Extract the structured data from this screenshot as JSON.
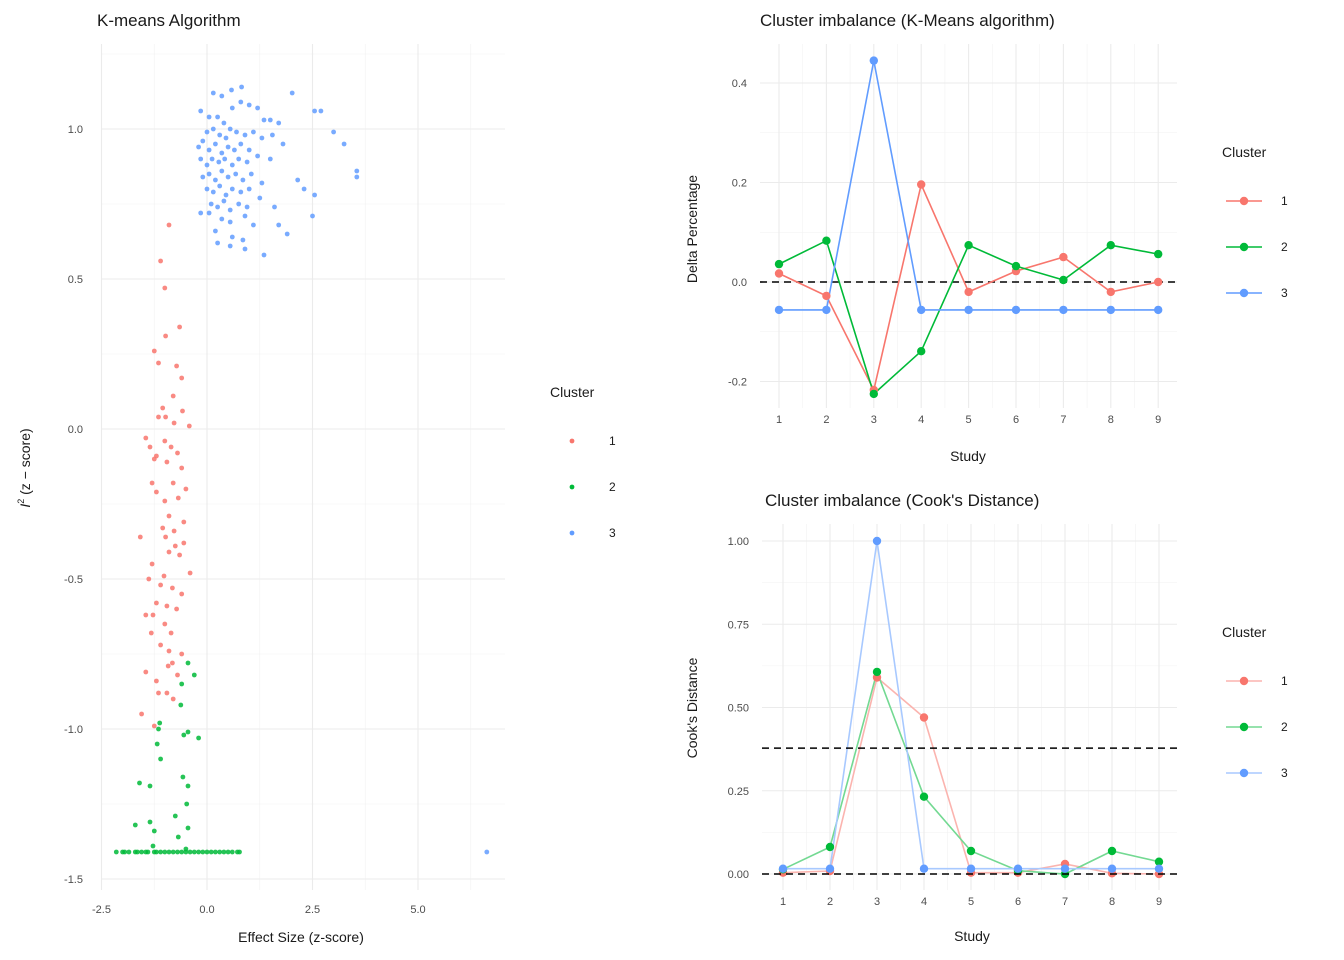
{
  "chart_data": [
    {
      "type": "scatter",
      "title": "K-means Algorithm",
      "xlabel": "Effect Size (z-score)",
      "ylabel_base": "I",
      "ylabel_sup": "2",
      "ylabel_rest": " (z − score)",
      "xlim": [
        -2.5,
        7.0
      ],
      "ylim": [
        -1.55,
        1.28
      ],
      "xticks": [
        -2.5,
        0.0,
        2.5,
        5.0
      ],
      "xtick_labels": [
        "-2.5",
        "0.0",
        "2.5",
        "5.0"
      ],
      "yticks": [
        -1.5,
        -1.0,
        -0.5,
        0.0,
        0.5,
        1.0
      ],
      "ytick_labels": [
        "-1.5",
        "-1.0",
        "-0.5",
        "0.0",
        "0.5",
        "1.0"
      ],
      "grid": true,
      "legend": {
        "title": "Cluster",
        "position": "right",
        "entries": [
          "1",
          "2",
          "3"
        ]
      },
      "colors": {
        "1": "#F8766D",
        "2": "#00BA38",
        "3": "#619CFF"
      },
      "series": [
        {
          "name": "1",
          "points": [
            [
              -0.9,
              0.68
            ],
            [
              -1.1,
              0.56
            ],
            [
              -1.0,
              0.47
            ],
            [
              -0.65,
              0.34
            ],
            [
              -1.25,
              0.26
            ],
            [
              -0.72,
              0.21
            ],
            [
              -0.98,
              0.31
            ],
            [
              -0.6,
              0.17
            ],
            [
              -1.15,
              0.22
            ],
            [
              -0.8,
              0.11
            ],
            [
              -0.58,
              0.06
            ],
            [
              -0.98,
              0.04
            ],
            [
              -1.05,
              0.07
            ],
            [
              -0.42,
              0.01
            ],
            [
              -1.15,
              0.04
            ],
            [
              -0.78,
              0.02
            ],
            [
              -1.45,
              -0.03
            ],
            [
              -1.35,
              -0.06
            ],
            [
              -1.0,
              -0.04
            ],
            [
              -0.85,
              -0.06
            ],
            [
              -0.7,
              -0.08
            ],
            [
              -1.2,
              -0.09
            ],
            [
              -0.95,
              -0.11
            ],
            [
              -0.6,
              -0.13
            ],
            [
              -0.8,
              -0.18
            ],
            [
              -1.2,
              -0.21
            ],
            [
              -1.0,
              -0.24
            ],
            [
              -0.68,
              -0.23
            ],
            [
              -1.3,
              -0.18
            ],
            [
              -0.9,
              -0.29
            ],
            [
              -0.55,
              -0.31
            ],
            [
              -1.05,
              -0.33
            ],
            [
              -0.78,
              -0.34
            ],
            [
              -0.98,
              -0.36
            ],
            [
              -1.58,
              -0.36
            ],
            [
              -0.75,
              -0.39
            ],
            [
              -0.9,
              -0.41
            ],
            [
              -0.65,
              -0.42
            ],
            [
              -1.3,
              -0.45
            ],
            [
              -1.02,
              -0.49
            ],
            [
              -1.1,
              -0.52
            ],
            [
              -0.4,
              -0.48
            ],
            [
              -0.82,
              -0.53
            ],
            [
              -0.6,
              -0.55
            ],
            [
              -1.2,
              -0.58
            ],
            [
              -0.95,
              -0.59
            ],
            [
              -0.72,
              -0.6
            ],
            [
              -1.28,
              -0.62
            ],
            [
              -1.0,
              -0.65
            ],
            [
              -0.85,
              -0.68
            ],
            [
              -1.32,
              -0.68
            ],
            [
              -1.1,
              -0.72
            ],
            [
              -0.9,
              -0.74
            ],
            [
              -0.6,
              -0.75
            ],
            [
              -0.92,
              -0.79
            ],
            [
              -0.82,
              -0.78
            ],
            [
              -0.7,
              -0.82
            ],
            [
              -1.45,
              -0.81
            ],
            [
              -1.2,
              -0.84
            ],
            [
              -0.95,
              -0.88
            ],
            [
              -1.15,
              -0.88
            ],
            [
              -0.8,
              -0.9
            ],
            [
              -1.55,
              -0.95
            ],
            [
              -1.25,
              -0.99
            ],
            [
              -1.45,
              -0.62
            ],
            [
              -1.38,
              -0.5
            ],
            [
              -0.55,
              -0.38
            ],
            [
              -1.25,
              -0.1
            ],
            [
              -0.5,
              -0.2
            ]
          ]
        },
        {
          "name": "2",
          "points": [
            [
              -0.45,
              -0.78
            ],
            [
              -0.3,
              -0.82
            ],
            [
              -0.6,
              -0.85
            ],
            [
              -0.62,
              -0.92
            ],
            [
              -1.12,
              -0.98
            ],
            [
              -1.15,
              -1.0
            ],
            [
              -0.55,
              -1.02
            ],
            [
              -0.45,
              -1.01
            ],
            [
              -0.2,
              -1.03
            ],
            [
              -1.18,
              -1.05
            ],
            [
              -1.1,
              -1.1
            ],
            [
              -0.57,
              -1.16
            ],
            [
              -1.6,
              -1.18
            ],
            [
              -1.35,
              -1.19
            ],
            [
              -0.45,
              -1.19
            ],
            [
              -0.48,
              -1.25
            ],
            [
              -1.35,
              -1.31
            ],
            [
              -0.75,
              -1.29
            ],
            [
              -1.7,
              -1.32
            ],
            [
              -1.25,
              -1.34
            ],
            [
              -0.45,
              -1.33
            ],
            [
              -0.68,
              -1.36
            ],
            [
              -1.28,
              -1.39
            ],
            [
              -0.5,
              -1.4
            ],
            [
              -2.15,
              -1.41
            ],
            [
              -2.0,
              -1.41
            ],
            [
              -1.95,
              -1.41
            ],
            [
              -1.85,
              -1.41
            ],
            [
              -1.7,
              -1.41
            ],
            [
              -1.65,
              -1.41
            ],
            [
              -1.55,
              -1.41
            ],
            [
              -1.45,
              -1.41
            ],
            [
              -1.4,
              -1.41
            ],
            [
              -1.25,
              -1.41
            ],
            [
              -1.2,
              -1.41
            ],
            [
              -1.1,
              -1.41
            ],
            [
              -1.0,
              -1.41
            ],
            [
              -0.9,
              -1.41
            ],
            [
              -0.8,
              -1.41
            ],
            [
              -0.7,
              -1.41
            ],
            [
              -0.6,
              -1.41
            ],
            [
              -0.5,
              -1.41
            ],
            [
              -0.4,
              -1.41
            ],
            [
              -0.3,
              -1.41
            ],
            [
              -0.2,
              -1.41
            ],
            [
              -0.1,
              -1.41
            ],
            [
              0.0,
              -1.41
            ],
            [
              0.1,
              -1.41
            ],
            [
              0.2,
              -1.41
            ],
            [
              0.3,
              -1.41
            ],
            [
              0.4,
              -1.41
            ],
            [
              0.5,
              -1.41
            ],
            [
              0.6,
              -1.41
            ],
            [
              0.72,
              -1.41
            ],
            [
              0.77,
              -1.41
            ]
          ]
        },
        {
          "name": "3",
          "points": [
            [
              6.63,
              -1.41
            ],
            [
              0.82,
              1.14
            ],
            [
              0.58,
              1.13
            ],
            [
              0.35,
              1.11
            ],
            [
              2.02,
              1.12
            ],
            [
              2.7,
              1.06
            ],
            [
              2.55,
              1.06
            ],
            [
              0.8,
              1.09
            ],
            [
              1.0,
              1.08
            ],
            [
              -0.15,
              1.06
            ],
            [
              0.05,
              1.04
            ],
            [
              0.25,
              1.04
            ],
            [
              0.4,
              1.02
            ],
            [
              0.6,
              1.07
            ],
            [
              1.2,
              1.07
            ],
            [
              1.35,
              1.03
            ],
            [
              1.5,
              1.03
            ],
            [
              1.7,
              1.02
            ],
            [
              0.0,
              0.99
            ],
            [
              0.15,
              1.0
            ],
            [
              0.3,
              0.98
            ],
            [
              0.45,
              0.97
            ],
            [
              0.55,
              1.0
            ],
            [
              0.7,
              0.99
            ],
            [
              0.9,
              0.98
            ],
            [
              1.1,
              0.99
            ],
            [
              1.3,
              0.97
            ],
            [
              1.55,
              0.98
            ],
            [
              -0.2,
              0.94
            ],
            [
              -0.1,
              0.96
            ],
            [
              0.05,
              0.93
            ],
            [
              0.2,
              0.95
            ],
            [
              0.35,
              0.92
            ],
            [
              0.5,
              0.94
            ],
            [
              0.65,
              0.93
            ],
            [
              0.8,
              0.95
            ],
            [
              1.0,
              0.93
            ],
            [
              1.8,
              0.95
            ],
            [
              -0.15,
              0.9
            ],
            [
              0.0,
              0.88
            ],
            [
              0.12,
              0.9
            ],
            [
              0.28,
              0.89
            ],
            [
              0.42,
              0.9
            ],
            [
              0.6,
              0.88
            ],
            [
              0.75,
              0.9
            ],
            [
              0.95,
              0.89
            ],
            [
              1.2,
              0.91
            ],
            [
              1.5,
              0.9
            ],
            [
              -0.1,
              0.84
            ],
            [
              0.05,
              0.85
            ],
            [
              0.2,
              0.83
            ],
            [
              0.35,
              0.86
            ],
            [
              0.5,
              0.84
            ],
            [
              0.68,
              0.85
            ],
            [
              0.85,
              0.83
            ],
            [
              1.05,
              0.85
            ],
            [
              2.15,
              0.83
            ],
            [
              0.0,
              0.8
            ],
            [
              0.15,
              0.79
            ],
            [
              0.3,
              0.81
            ],
            [
              0.45,
              0.78
            ],
            [
              0.6,
              0.8
            ],
            [
              0.8,
              0.79
            ],
            [
              1.0,
              0.8
            ],
            [
              1.3,
              0.82
            ],
            [
              2.3,
              0.8
            ],
            [
              2.55,
              0.78
            ],
            [
              0.1,
              0.75
            ],
            [
              0.25,
              0.74
            ],
            [
              0.4,
              0.76
            ],
            [
              0.55,
              0.73
            ],
            [
              0.75,
              0.75
            ],
            [
              0.95,
              0.74
            ],
            [
              1.25,
              0.77
            ],
            [
              2.5,
              0.71
            ],
            [
              1.6,
              0.74
            ],
            [
              0.05,
              0.72
            ],
            [
              0.35,
              0.7
            ],
            [
              0.55,
              0.69
            ],
            [
              0.9,
              0.71
            ],
            [
              1.1,
              0.68
            ],
            [
              1.7,
              0.68
            ],
            [
              0.2,
              0.66
            ],
            [
              0.6,
              0.64
            ],
            [
              0.85,
              0.63
            ],
            [
              1.9,
              0.65
            ],
            [
              0.25,
              0.62
            ],
            [
              0.55,
              0.61
            ],
            [
              0.9,
              0.6
            ],
            [
              1.35,
              0.58
            ],
            [
              -0.15,
              0.72
            ],
            [
              3.0,
              0.99
            ],
            [
              3.25,
              0.95
            ],
            [
              3.55,
              0.86
            ],
            [
              3.55,
              0.84
            ],
            [
              0.15,
              1.12
            ]
          ]
        }
      ]
    },
    {
      "type": "line",
      "title": "Cluster imbalance (K-Means algorithm)",
      "xlabel": "Study",
      "ylabel": "Delta Percentage",
      "x": [
        1,
        2,
        3,
        4,
        5,
        6,
        7,
        8,
        9
      ],
      "xtick_labels": [
        "1",
        "2",
        "3",
        "4",
        "5",
        "6",
        "7",
        "8",
        "9"
      ],
      "ylim": [
        -0.265,
        0.475
      ],
      "yticks": [
        -0.2,
        0.0,
        0.2,
        0.4
      ],
      "ytick_labels": [
        "-0.2",
        "0.0",
        "0.2",
        "0.4"
      ],
      "reference_lines": [
        0.0
      ],
      "grid": true,
      "legend": {
        "title": "Cluster",
        "position": "right",
        "entries": [
          "1",
          "2",
          "3"
        ]
      },
      "series": [
        {
          "name": "1",
          "color": "#F8766D",
          "values": [
            0.017,
            -0.028,
            -0.217,
            0.196,
            -0.02,
            0.022,
            0.05,
            -0.02,
            0.0
          ]
        },
        {
          "name": "2",
          "color": "#00BA38",
          "values": [
            0.036,
            0.083,
            -0.225,
            -0.139,
            0.074,
            0.032,
            0.004,
            0.074,
            0.056
          ]
        },
        {
          "name": "3",
          "color": "#619CFF",
          "values": [
            -0.056,
            -0.056,
            0.445,
            -0.056,
            -0.056,
            -0.056,
            -0.056,
            -0.056,
            -0.056
          ]
        }
      ]
    },
    {
      "type": "line",
      "title": "Cluster imbalance (Cook's Distance)",
      "xlabel": "Study",
      "ylabel": "Cook's Distance",
      "x": [
        1,
        2,
        3,
        4,
        5,
        6,
        7,
        8,
        9
      ],
      "xtick_labels": [
        "1",
        "2",
        "3",
        "4",
        "5",
        "6",
        "7",
        "8",
        "9"
      ],
      "ylim": [
        -0.05,
        1.05
      ],
      "yticks": [
        0.0,
        0.25,
        0.5,
        0.75,
        1.0
      ],
      "ytick_labels": [
        "0.00",
        "0.25",
        "0.50",
        "0.75",
        "1.00"
      ],
      "reference_lines": [
        0.0,
        0.378
      ],
      "grid": true,
      "legend": {
        "title": "Cluster",
        "position": "right",
        "entries": [
          "1",
          "2",
          "3"
        ]
      },
      "series": [
        {
          "name": "1",
          "color": "#F8766D",
          "values": [
            0.004,
            0.009,
            0.59,
            0.47,
            0.004,
            0.004,
            0.03,
            0.002,
            0.0
          ]
        },
        {
          "name": "2",
          "color": "#00BA38",
          "values": [
            0.014,
            0.081,
            0.607,
            0.232,
            0.069,
            0.01,
            0.0,
            0.069,
            0.037
          ]
        },
        {
          "name": "3",
          "color": "#619CFF",
          "values": [
            0.016,
            0.016,
            1.0,
            0.016,
            0.016,
            0.016,
            0.016,
            0.016,
            0.016
          ]
        }
      ]
    }
  ]
}
